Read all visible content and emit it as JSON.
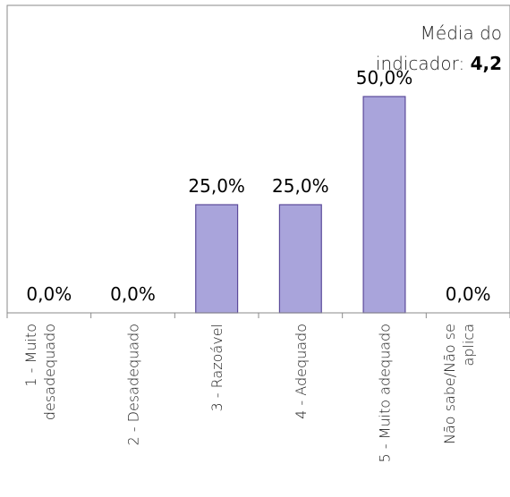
{
  "chart_data": {
    "type": "bar",
    "categories": [
      [
        "1 - Muito",
        "desadequado"
      ],
      [
        "2 - Desadequado"
      ],
      [
        "3 - Razoável"
      ],
      [
        "4 - Adequado"
      ],
      [
        "5 - Muito adequado"
      ],
      [
        "Não sabe/Não se",
        "aplica"
      ]
    ],
    "values": [
      0.0,
      0.0,
      25.0,
      25.0,
      50.0,
      0.0
    ],
    "data_labels": [
      "0,0%",
      "0,0%",
      "25,0%",
      "25,0%",
      "50,0%",
      "0,0%"
    ],
    "ylim": [
      0,
      60
    ],
    "bar_color": "#a9a4db",
    "bar_edge_color": "#5b4a9a",
    "annotation": {
      "line1": "Média do",
      "line2": "indicador: ",
      "value": "4,2"
    },
    "grid": false,
    "legend": "none"
  }
}
